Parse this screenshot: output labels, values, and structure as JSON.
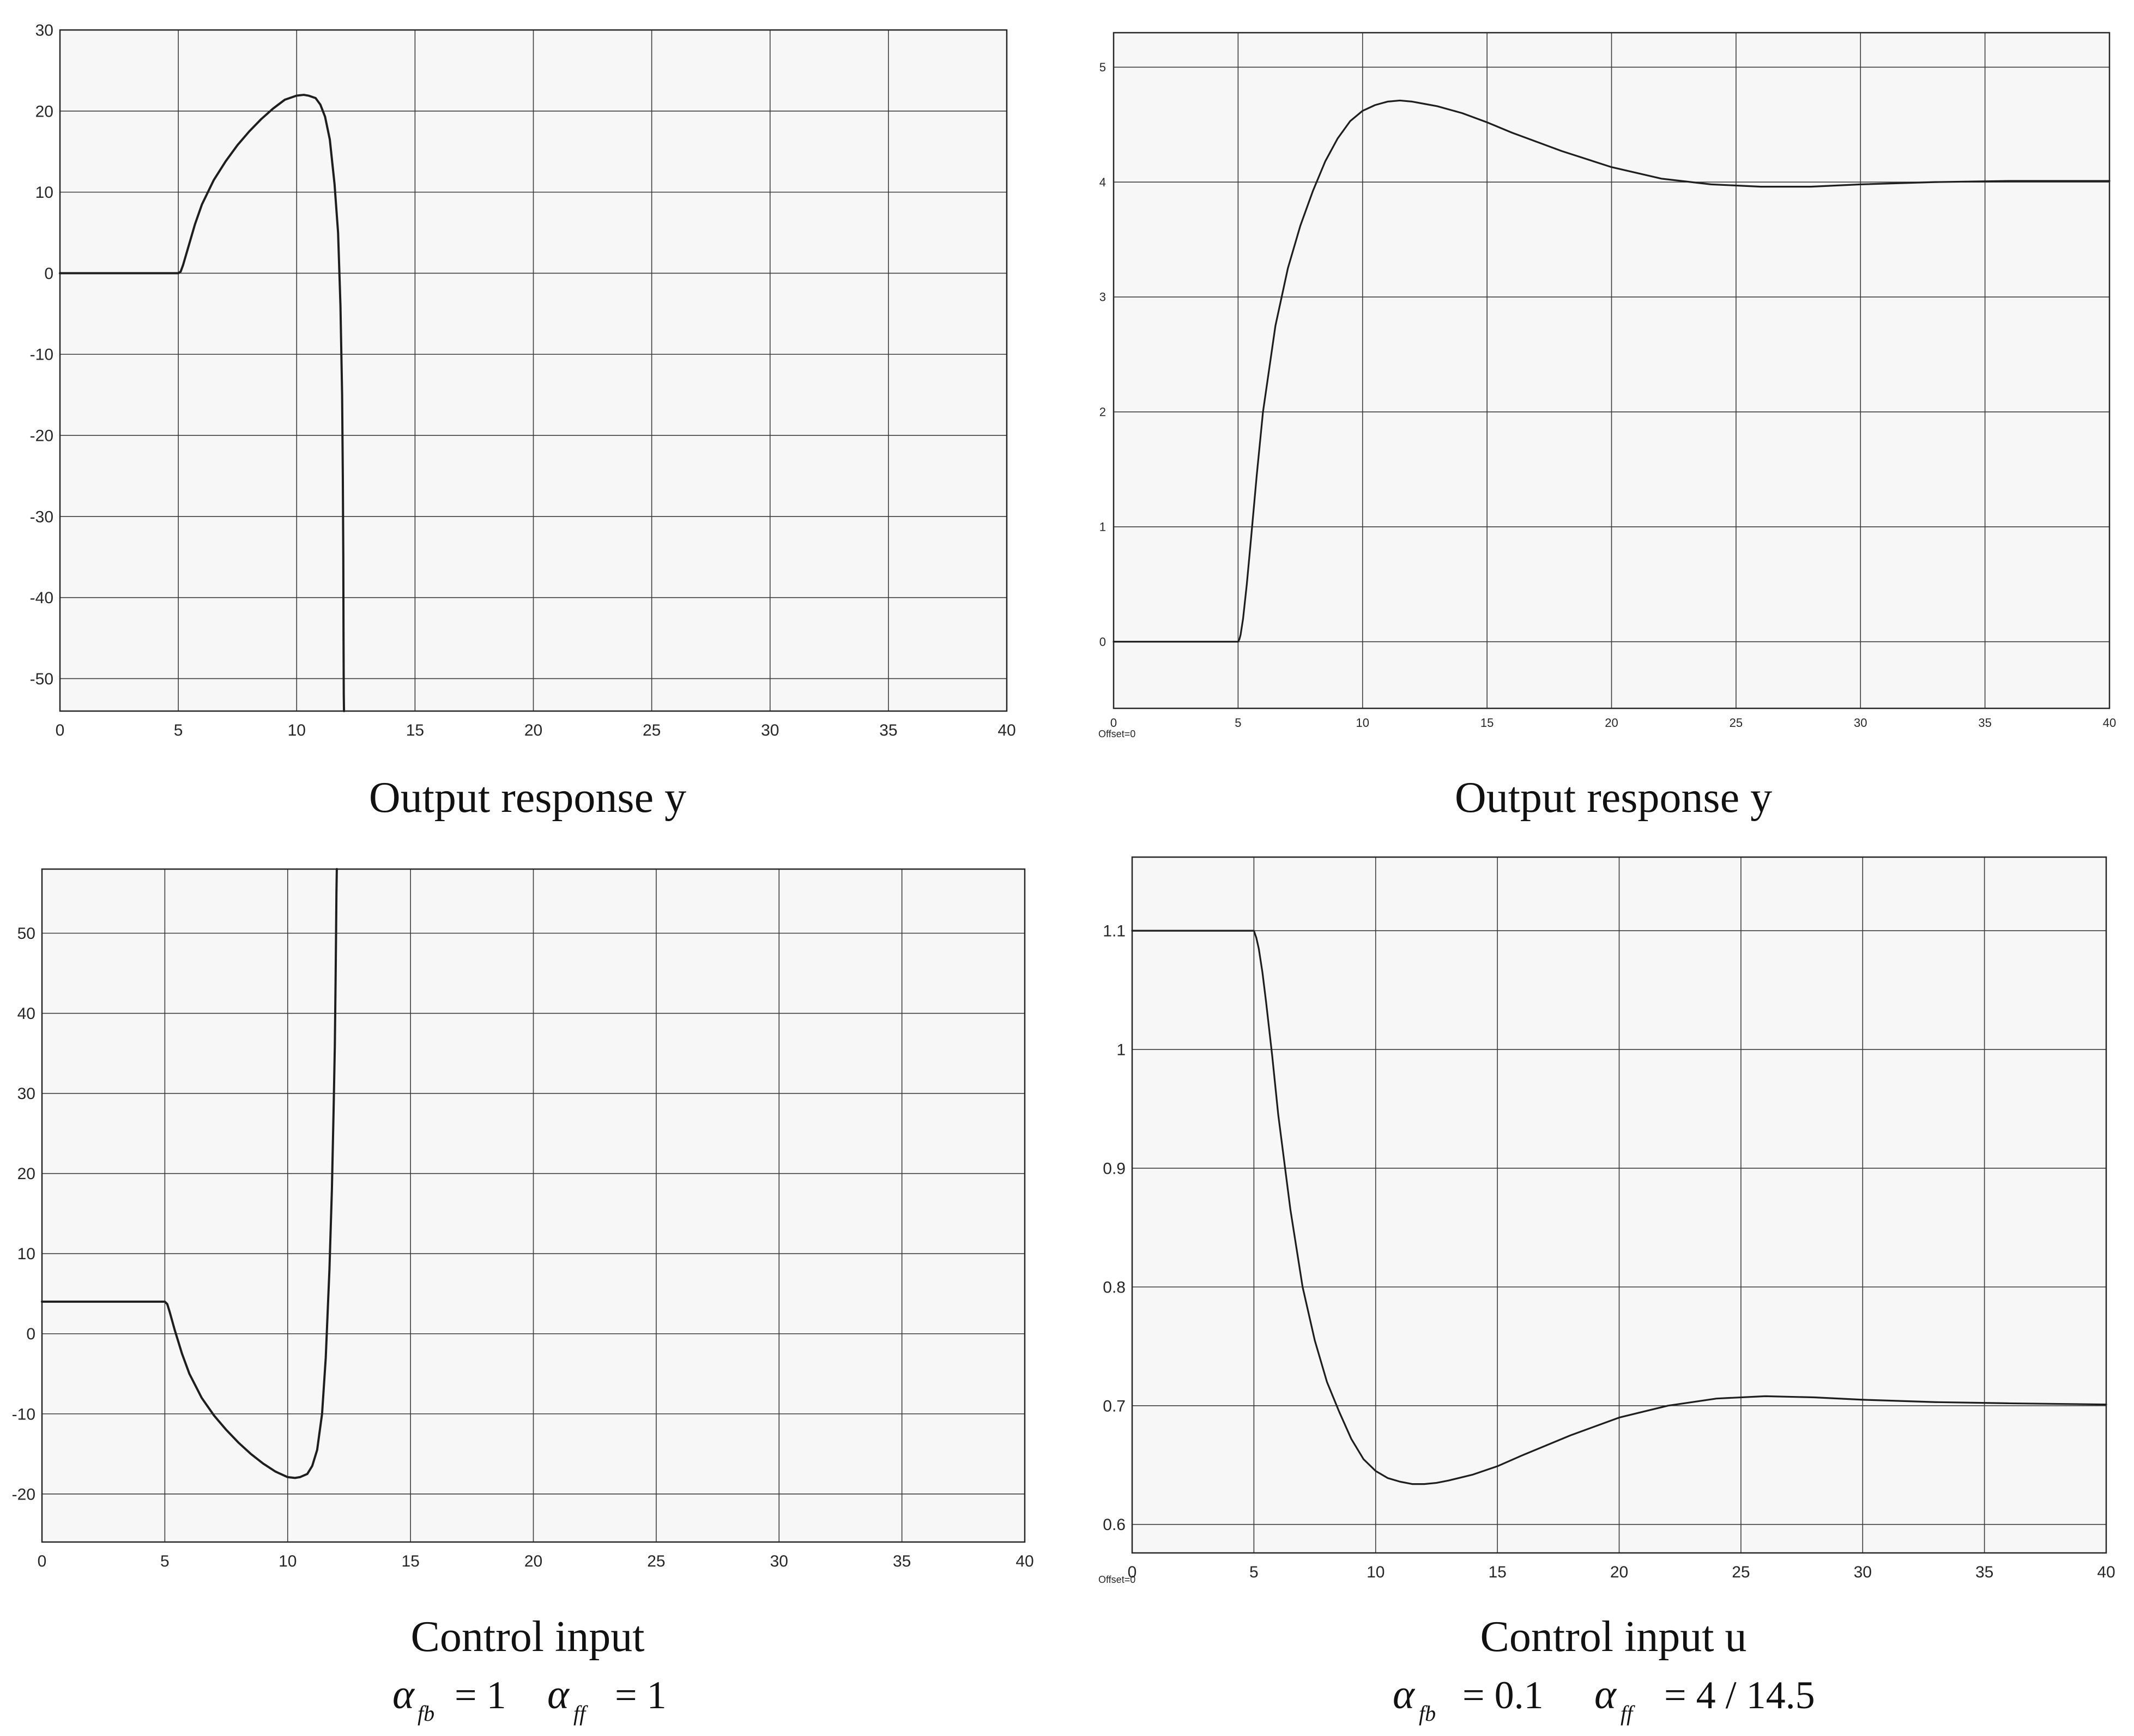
{
  "colors": {
    "background": "#f7f7f7",
    "grid": "#3c3c3c",
    "trace": "#1e1e1e",
    "frame": "#262626"
  },
  "chart_data": [
    {
      "type": "line",
      "id": "tl",
      "caption": "Output response y",
      "xlim": [
        0,
        40
      ],
      "ylim": [
        -54,
        30
      ],
      "xticks": [
        0,
        5,
        10,
        15,
        20,
        25,
        30,
        35,
        40
      ],
      "yticks": [
        30,
        20,
        10,
        0,
        -10,
        -20,
        -30,
        -40,
        -50
      ],
      "xticklabels": [
        "0",
        "5",
        "10",
        "15",
        "20",
        "25",
        "30",
        "35",
        "40"
      ],
      "yticklabels": [
        "30",
        "20",
        "10",
        "0",
        "-10",
        "-20",
        "-30",
        "-40",
        "-50"
      ],
      "grid": true,
      "series": [
        {
          "name": "y",
          "x": [
            0,
            5,
            5.1,
            5.2,
            5.4,
            5.7,
            6,
            6.5,
            7,
            7.5,
            8,
            8.5,
            9,
            9.5,
            10,
            10.3,
            10.5,
            10.8,
            11,
            11.2,
            11.4,
            11.6,
            11.75,
            11.85,
            11.92,
            11.95,
            11.97,
            11.98,
            11.99,
            12.0
          ],
          "y": [
            0,
            0,
            0.2,
            1,
            3,
            6,
            8.5,
            11.5,
            13.8,
            15.8,
            17.5,
            19,
            20.3,
            21.4,
            21.9,
            22,
            21.9,
            21.6,
            20.8,
            19.3,
            16.5,
            11,
            5,
            -4,
            -15,
            -25,
            -35,
            -45,
            -52,
            -54
          ]
        }
      ]
    },
    {
      "type": "line",
      "id": "tr",
      "caption": "Output response y",
      "footnote": "Offset=0",
      "xlim": [
        0,
        40
      ],
      "ylim": [
        -0.58,
        5.3
      ],
      "xticks": [
        0,
        5,
        10,
        15,
        20,
        25,
        30,
        35,
        40
      ],
      "yticks": [
        0,
        1,
        2,
        3,
        4,
        5
      ],
      "xticklabels": [
        "0",
        "5",
        "10",
        "15",
        "20",
        "25",
        "30",
        "35",
        "40"
      ],
      "yticklabels": [
        "0",
        "1",
        "2",
        "3",
        "4",
        "5"
      ],
      "grid": true,
      "series": [
        {
          "name": "y",
          "x": [
            0,
            5,
            5.05,
            5.1,
            5.2,
            5.35,
            5.5,
            5.75,
            6,
            6.5,
            7,
            7.5,
            8,
            8.5,
            9,
            9.5,
            10,
            10.5,
            11,
            11.5,
            12,
            12.5,
            13,
            14,
            15,
            16,
            18,
            20,
            22,
            24,
            26,
            28,
            30,
            33,
            36,
            40
          ],
          "y": [
            0,
            0,
            0.02,
            0.06,
            0.2,
            0.5,
            0.85,
            1.45,
            2.0,
            2.75,
            3.25,
            3.62,
            3.92,
            4.18,
            4.38,
            4.53,
            4.62,
            4.67,
            4.7,
            4.71,
            4.7,
            4.68,
            4.66,
            4.6,
            4.52,
            4.43,
            4.27,
            4.13,
            4.03,
            3.98,
            3.96,
            3.96,
            3.98,
            4.0,
            4.01,
            4.01
          ]
        }
      ]
    },
    {
      "type": "line",
      "id": "bl",
      "caption": "Control input",
      "math": {
        "sym1": "α",
        "sub1": "fb",
        "val1": "= 1",
        "sym2": "α",
        "sub2": "ff",
        "val2": "= 1"
      },
      "xlim": [
        0,
        40
      ],
      "ylim": [
        -26,
        58
      ],
      "xticks": [
        0,
        5,
        10,
        15,
        20,
        25,
        30,
        35,
        40
      ],
      "yticks": [
        50,
        40,
        30,
        20,
        10,
        0,
        -10,
        -20
      ],
      "xticklabels": [
        "0",
        "5",
        "10",
        "15",
        "20",
        "25",
        "30",
        "35",
        "40"
      ],
      "yticklabels": [
        "50",
        "40",
        "30",
        "20",
        "10",
        "0",
        "-10",
        "-20"
      ],
      "grid": true,
      "series": [
        {
          "name": "u",
          "x": [
            0,
            5,
            5.1,
            5.2,
            5.4,
            5.7,
            6,
            6.5,
            7,
            7.5,
            8,
            8.5,
            9,
            9.5,
            10,
            10.3,
            10.5,
            10.8,
            11,
            11.2,
            11.4,
            11.55,
            11.7,
            11.8,
            11.87,
            11.92,
            11.95,
            11.97,
            11.985,
            12.0
          ],
          "y": [
            4,
            4,
            3.7,
            2.7,
            0.5,
            -2.5,
            -5,
            -8,
            -10.2,
            -12,
            -13.6,
            -15,
            -16.2,
            -17.2,
            -17.9,
            -18,
            -17.9,
            -17.5,
            -16.5,
            -14.5,
            -10,
            -3,
            8,
            18,
            28,
            36,
            44,
            50,
            55,
            58
          ]
        }
      ]
    },
    {
      "type": "line",
      "id": "br",
      "caption": "Control input u",
      "footnote": "Offset=0",
      "math": {
        "sym1": "α",
        "sub1": "fb",
        "val1": "= 0.1",
        "sym2": "α",
        "sub2": "ff",
        "val2": "= 4 / 14.5"
      },
      "xlim": [
        0,
        40
      ],
      "ylim": [
        0.576,
        1.162
      ],
      "xticks": [
        0,
        5,
        10,
        15,
        20,
        25,
        30,
        35,
        40
      ],
      "yticks": [
        1.1,
        1,
        0.9,
        0.8,
        0.7,
        0.6
      ],
      "xticklabels": [
        "0",
        "5",
        "10",
        "15",
        "20",
        "25",
        "30",
        "35",
        "40"
      ],
      "yticklabels": [
        "1.1",
        "1",
        "0.9",
        "0.8",
        "0.7",
        "0.6"
      ],
      "grid": true,
      "series": [
        {
          "name": "u",
          "x": [
            0,
            5,
            5.05,
            5.1,
            5.2,
            5.35,
            5.5,
            5.75,
            6,
            6.5,
            7,
            7.5,
            8,
            8.5,
            9,
            9.5,
            10,
            10.5,
            11,
            11.5,
            12,
            12.5,
            13,
            14,
            15,
            16,
            18,
            20,
            22,
            24,
            26,
            28,
            30,
            33,
            36,
            40
          ],
          "y": [
            1.1,
            1.1,
            1.097,
            1.094,
            1.085,
            1.065,
            1.04,
            0.995,
            0.945,
            0.865,
            0.8,
            0.755,
            0.72,
            0.695,
            0.672,
            0.655,
            0.645,
            0.639,
            0.636,
            0.634,
            0.634,
            0.635,
            0.637,
            0.642,
            0.649,
            0.658,
            0.675,
            0.69,
            0.7,
            0.706,
            0.708,
            0.707,
            0.705,
            0.703,
            0.702,
            0.701
          ]
        }
      ]
    }
  ]
}
